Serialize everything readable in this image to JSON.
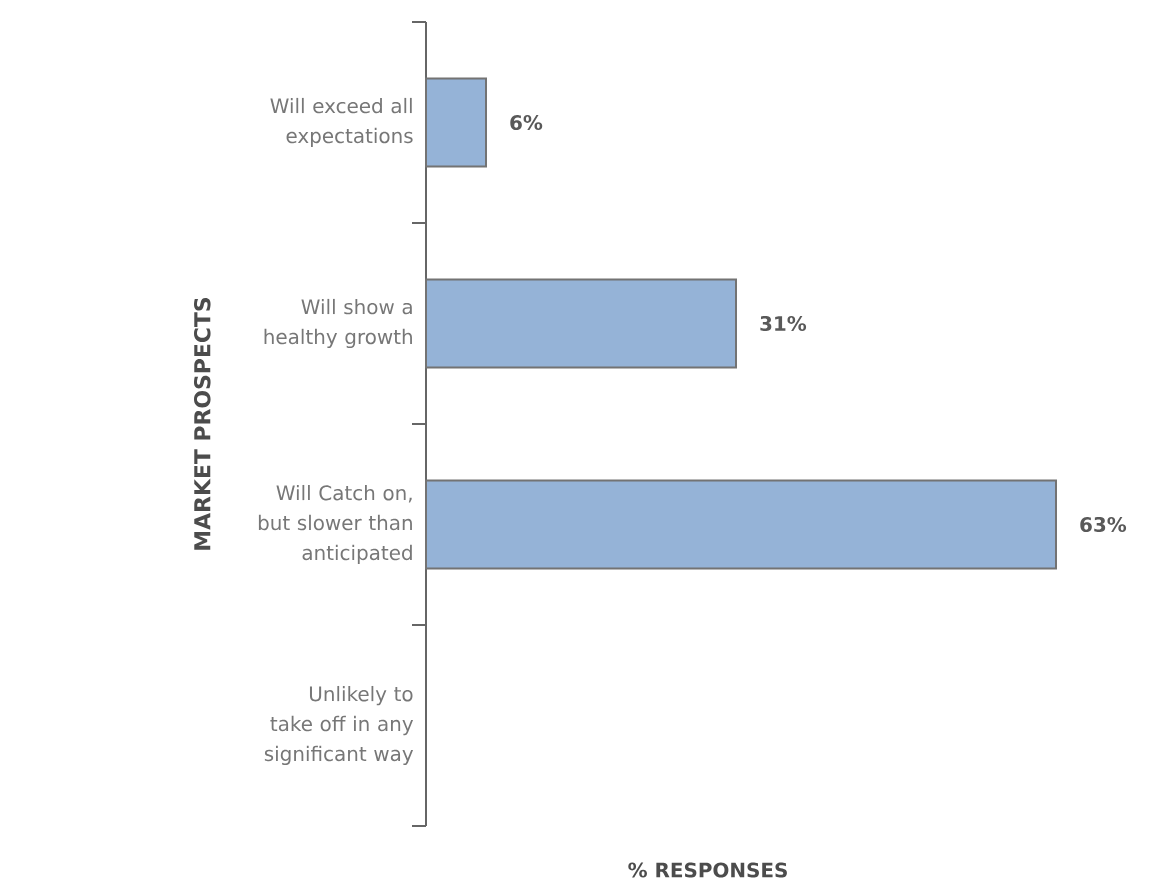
{
  "chart_data": {
    "type": "bar",
    "orientation": "horizontal",
    "categories": [
      "Will exceed all expectations",
      "Will show a healthy growth",
      "Will Catch on, but slower than anticipated",
      "Unlikely to take off in any significant way"
    ],
    "values": [
      6,
      31,
      63,
      null
    ],
    "value_labels": [
      "6%",
      "31%",
      "63%",
      null
    ],
    "color": "#95b3d7",
    "xlabel": "% RESPONSES",
    "ylabel": "MARKET PROSPECTS"
  }
}
